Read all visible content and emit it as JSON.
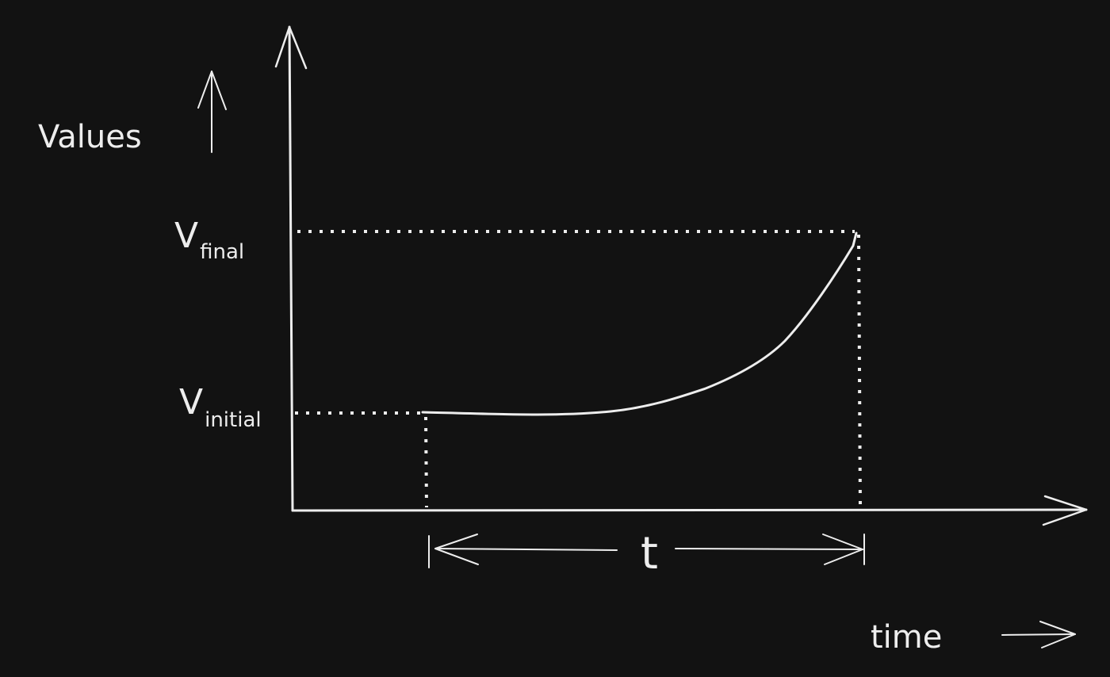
{
  "diagram": {
    "y_axis_label": "Values",
    "x_axis_label": "time",
    "v_final": {
      "main": "V",
      "sub": "final"
    },
    "v_initial": {
      "main": "V",
      "sub": "initial"
    },
    "duration_label": "t",
    "colors": {
      "background": "#121212",
      "ink": "#ededed"
    }
  }
}
